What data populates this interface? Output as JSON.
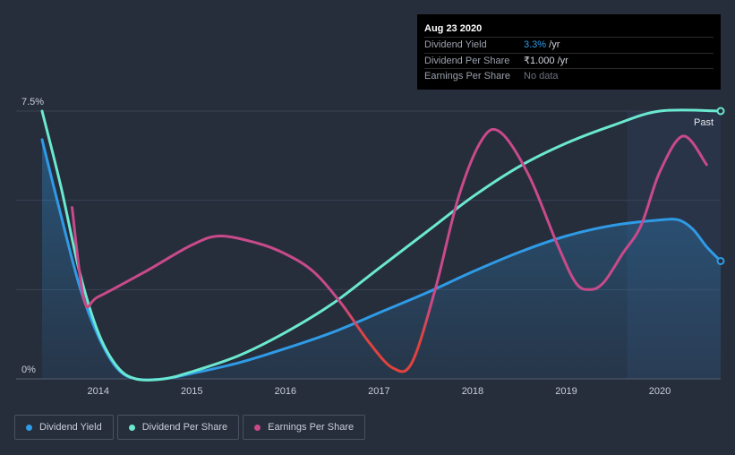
{
  "tooltip": {
    "date": "Aug 23 2020",
    "rows": [
      {
        "label": "Dividend Yield",
        "value": "3.3%",
        "unit": " /yr"
      },
      {
        "label": "Dividend Per Share",
        "value": "₹1.000",
        "unit": " /yr"
      },
      {
        "label": "Earnings Per Share",
        "value": "No data",
        "unit": ""
      }
    ]
  },
  "past_label": "Past",
  "legend": [
    {
      "label": "Dividend Yield",
      "color": "#2f9be6"
    },
    {
      "label": "Dividend Per Share",
      "color": "#6be8d0"
    },
    {
      "label": "Earnings Per Share",
      "color": "#c84a8a"
    }
  ],
  "chart_data": {
    "type": "line",
    "ylim": [
      0,
      7.5
    ],
    "y_tick_labels": [
      "0%",
      "7.5%"
    ],
    "xlim": [
      2013.4,
      2020.65
    ],
    "x_tick_values": [
      2014,
      2015,
      2016,
      2017,
      2018,
      2019,
      2020
    ],
    "x_tick_labels": [
      "2014",
      "2015",
      "2016",
      "2017",
      "2018",
      "2019",
      "2020"
    ],
    "past_region_start": 2019.65,
    "grid": true,
    "series": [
      {
        "name": "Dividend Yield",
        "color": "#2f9be6",
        "fill": true,
        "points": [
          [
            2013.4,
            6.7
          ],
          [
            2013.6,
            4.6
          ],
          [
            2013.8,
            2.6
          ],
          [
            2014.0,
            1.2
          ],
          [
            2014.2,
            0.3
          ],
          [
            2014.4,
            0.0
          ],
          [
            2014.7,
            0.0
          ],
          [
            2015.0,
            0.15
          ],
          [
            2015.5,
            0.45
          ],
          [
            2016.0,
            0.85
          ],
          [
            2016.5,
            1.3
          ],
          [
            2017.0,
            1.85
          ],
          [
            2017.5,
            2.4
          ],
          [
            2018.0,
            3.0
          ],
          [
            2018.5,
            3.55
          ],
          [
            2019.0,
            4.0
          ],
          [
            2019.5,
            4.3
          ],
          [
            2020.0,
            4.45
          ],
          [
            2020.2,
            4.45
          ],
          [
            2020.35,
            4.2
          ],
          [
            2020.5,
            3.7
          ],
          [
            2020.65,
            3.3
          ]
        ],
        "end_marker": true
      },
      {
        "name": "Dividend Per Share",
        "color": "#6be8d0",
        "fill": false,
        "points": [
          [
            2013.4,
            7.5
          ],
          [
            2013.6,
            5.4
          ],
          [
            2013.8,
            3.0
          ],
          [
            2014.0,
            1.3
          ],
          [
            2014.2,
            0.35
          ],
          [
            2014.4,
            0.0
          ],
          [
            2014.7,
            0.0
          ],
          [
            2015.0,
            0.2
          ],
          [
            2015.5,
            0.65
          ],
          [
            2016.0,
            1.3
          ],
          [
            2016.5,
            2.1
          ],
          [
            2017.0,
            3.1
          ],
          [
            2017.5,
            4.1
          ],
          [
            2018.0,
            5.1
          ],
          [
            2018.5,
            5.95
          ],
          [
            2019.0,
            6.6
          ],
          [
            2019.5,
            7.1
          ],
          [
            2020.0,
            7.5
          ],
          [
            2020.65,
            7.5
          ]
        ],
        "end_marker": true
      },
      {
        "name": "Earnings Per Share",
        "color": "#c84a8a",
        "fill": false,
        "points": [
          [
            2013.72,
            4.8
          ],
          [
            2013.85,
            2.2
          ],
          [
            2014.0,
            2.3
          ],
          [
            2014.5,
            3.0
          ],
          [
            2015.0,
            3.75
          ],
          [
            2015.3,
            4.0
          ],
          [
            2015.7,
            3.8
          ],
          [
            2016.0,
            3.5
          ],
          [
            2016.3,
            3.0
          ],
          [
            2016.6,
            2.1
          ],
          [
            2016.9,
            1.0
          ],
          [
            2017.15,
            0.3
          ],
          [
            2017.35,
            0.45
          ],
          [
            2017.6,
            2.5
          ],
          [
            2017.85,
            5.1
          ],
          [
            2018.1,
            6.7
          ],
          [
            2018.3,
            6.9
          ],
          [
            2018.6,
            5.7
          ],
          [
            2018.9,
            3.8
          ],
          [
            2019.1,
            2.7
          ],
          [
            2019.25,
            2.5
          ],
          [
            2019.4,
            2.7
          ],
          [
            2019.6,
            3.5
          ],
          [
            2019.8,
            4.3
          ],
          [
            2020.0,
            5.8
          ],
          [
            2020.25,
            6.8
          ],
          [
            2020.5,
            6.0
          ]
        ],
        "end_marker": false
      }
    ]
  }
}
